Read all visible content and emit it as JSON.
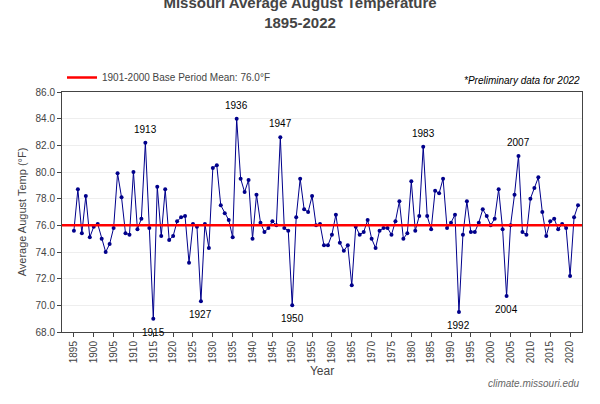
{
  "chart_data": {
    "type": "line",
    "title": "Missouri Average August Temperature",
    "subtitle": "1895-2022",
    "x_label": "Year",
    "y_label": "Average August Temp (°F)",
    "x": [
      1895,
      1896,
      1897,
      1898,
      1899,
      1900,
      1901,
      1902,
      1903,
      1904,
      1905,
      1906,
      1907,
      1908,
      1909,
      1910,
      1911,
      1912,
      1913,
      1914,
      1915,
      1916,
      1917,
      1918,
      1919,
      1920,
      1921,
      1922,
      1923,
      1924,
      1925,
      1926,
      1927,
      1928,
      1929,
      1930,
      1931,
      1932,
      1933,
      1934,
      1935,
      1936,
      1937,
      1938,
      1939,
      1940,
      1941,
      1942,
      1943,
      1944,
      1945,
      1946,
      1947,
      1948,
      1949,
      1950,
      1951,
      1952,
      1953,
      1954,
      1955,
      1956,
      1957,
      1958,
      1959,
      1960,
      1961,
      1962,
      1963,
      1964,
      1965,
      1966,
      1967,
      1968,
      1969,
      1970,
      1971,
      1972,
      1973,
      1974,
      1975,
      1976,
      1977,
      1978,
      1979,
      1980,
      1981,
      1982,
      1983,
      1984,
      1985,
      1986,
      1987,
      1988,
      1989,
      1990,
      1991,
      1992,
      1993,
      1994,
      1995,
      1996,
      1997,
      1998,
      1999,
      2000,
      2001,
      2002,
      2003,
      2004,
      2005,
      2006,
      2007,
      2008,
      2009,
      2010,
      2011,
      2012,
      2013,
      2014,
      2015,
      2016,
      2017,
      2018,
      2019,
      2020,
      2021,
      2022
    ],
    "series": [
      {
        "color": "#00008B",
        "marker": "circle",
        "values": [
          75.6,
          78.7,
          75.4,
          78.2,
          75.1,
          75.9,
          76.1,
          75.0,
          74.0,
          74.6,
          75.8,
          79.9,
          78.1,
          75.4,
          75.3,
          80.0,
          75.7,
          76.5,
          82.2,
          75.8,
          69.0,
          78.9,
          75.2,
          78.7,
          74.9,
          75.2,
          76.3,
          76.6,
          76.7,
          73.2,
          76.1,
          75.9,
          70.3,
          76.1,
          74.3,
          80.3,
          80.5,
          77.5,
          76.9,
          76.4,
          75.1,
          84.0,
          79.5,
          78.5,
          79.4,
          75.0,
          78.3,
          76.2,
          75.5,
          75.8,
          76.3,
          76.0,
          82.6,
          75.8,
          75.6,
          70.0,
          76.6,
          79.5,
          77.2,
          77.0,
          78.2,
          76.0,
          76.1,
          74.5,
          74.5,
          75.3,
          76.8,
          74.7,
          74.1,
          74.5,
          71.5,
          75.9,
          75.3,
          75.5,
          76.4,
          75.0,
          74.3,
          75.6,
          75.8,
          75.8,
          75.3,
          76.3,
          77.8,
          75.0,
          75.4,
          79.3,
          75.6,
          76.7,
          81.9,
          76.7,
          75.7,
          78.6,
          78.4,
          79.5,
          75.8,
          76.2,
          76.8,
          69.5,
          75.3,
          77.8,
          75.5,
          75.5,
          76.2,
          77.2,
          76.7,
          76.0,
          76.5,
          78.7,
          75.7,
          70.7,
          76.0,
          78.3,
          81.2,
          75.5,
          75.3,
          78.0,
          78.8,
          79.6,
          77.0,
          75.2,
          76.3,
          76.5,
          75.7,
          76.1,
          75.8,
          72.2,
          76.6,
          77.5
        ]
      }
    ],
    "mean": {
      "value": 76.0,
      "label": "1901-2000 Base Period Mean: 76.0°F",
      "color": "#FF0000"
    },
    "legend": "top left",
    "notes": [
      "*Preliminary data for 2022",
      "climate.missouri.edu"
    ],
    "annotations": [
      {
        "x": 1913,
        "y": 82.2,
        "text": "1913"
      },
      {
        "x": 1915,
        "y": 69.0,
        "text": "1915"
      },
      {
        "x": 1927,
        "y": 70.3,
        "text": "1927"
      },
      {
        "x": 1936,
        "y": 84.0,
        "text": "1936"
      },
      {
        "x": 1947,
        "y": 82.6,
        "text": "1947"
      },
      {
        "x": 1950,
        "y": 70.0,
        "text": "1950"
      },
      {
        "x": 1983,
        "y": 81.9,
        "text": "1983"
      },
      {
        "x": 1992,
        "y": 69.5,
        "text": "1992"
      },
      {
        "x": 2004,
        "y": 70.7,
        "text": "2004"
      },
      {
        "x": 2007,
        "y": 81.2,
        "text": "2007"
      }
    ],
    "xlim": [
      1892,
      2023
    ],
    "xticks": [
      1895,
      1900,
      1905,
      1910,
      1915,
      1920,
      1925,
      1930,
      1935,
      1940,
      1945,
      1950,
      1955,
      1960,
      1965,
      1970,
      1975,
      1980,
      1985,
      1990,
      1995,
      2000,
      2005,
      2010,
      2015,
      2020
    ],
    "ylim": [
      68.0,
      86.0
    ],
    "yticks": [
      {
        "value": 68.0,
        "label": "68.0"
      },
      {
        "value": 70.0,
        "label": "70.0"
      },
      {
        "value": 72.0,
        "label": "72.0"
      },
      {
        "value": 74.0,
        "label": "74.0"
      },
      {
        "value": 76.0,
        "label": "76.0"
      },
      {
        "value": 78.0,
        "label": "78.0"
      },
      {
        "value": 80.0,
        "label": "80.0"
      },
      {
        "value": 82.0,
        "label": "82.0"
      },
      {
        "value": 84.0,
        "label": "84.0"
      },
      {
        "value": 86.0,
        "label": "86.0"
      }
    ],
    "grid": true
  }
}
